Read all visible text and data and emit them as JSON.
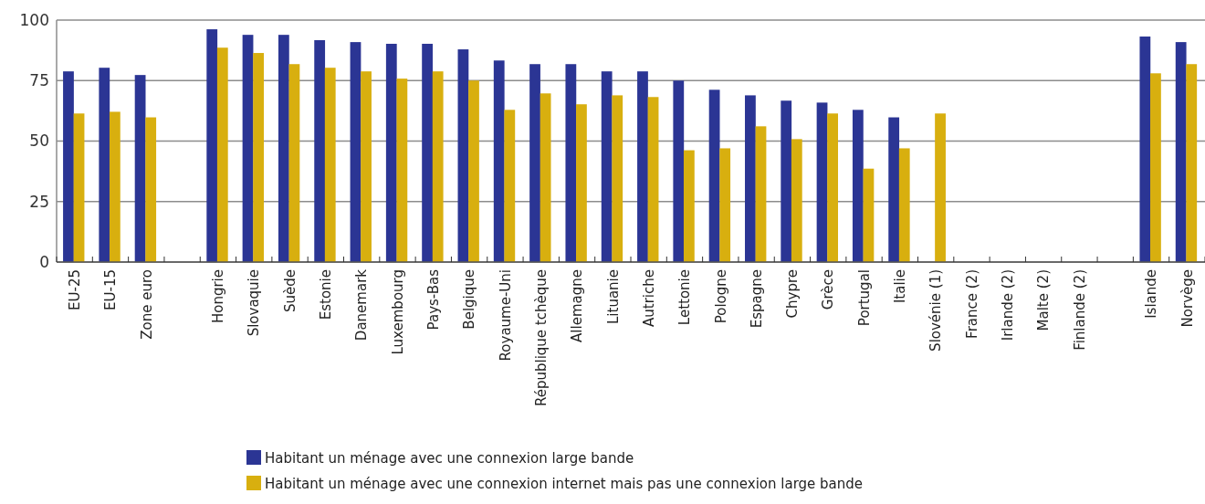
{
  "chart_data": {
    "type": "bar",
    "categories": [
      "EU-25",
      "EU-15",
      "Zone euro",
      null,
      "Hongrie",
      "Slovaquie",
      "Suède",
      "Estonie",
      "Danemark",
      "Luxembourg",
      "Pays-Bas",
      "Belgique",
      "Royaume-Uni",
      "République tchèque",
      "Allemagne",
      "Lituanie",
      "Autriche",
      "Lettonie",
      "Pologne",
      "Espagne",
      "Chypre",
      "Grèce",
      "Portugal",
      "Italie",
      "Slovénie (1)",
      "France (2)",
      "Irlande (2)",
      "Malte (2)",
      "Finlande (2)",
      null,
      "Islande",
      "Norvège"
    ],
    "series": [
      {
        "name": "Habitant un ménage avec une connexion large bande",
        "color": "#2b3594",
        "values": [
          78.8,
          80.3,
          77.3,
          null,
          96.2,
          93.9,
          93.9,
          91.7,
          90.9,
          90.2,
          90.2,
          87.9,
          83.3,
          81.8,
          81.8,
          78.8,
          78.8,
          75.0,
          71.2,
          68.9,
          66.7,
          65.9,
          62.9,
          59.8,
          null,
          null,
          null,
          null,
          null,
          null,
          93.2,
          90.9
        ]
      },
      {
        "name": "Habitant un ménage avec une connexion internet mais pas une connexion large bande",
        "color": "#d8af0f",
        "values": [
          61.4,
          62.1,
          59.8,
          null,
          88.6,
          86.4,
          81.8,
          80.3,
          78.8,
          75.8,
          78.8,
          75.0,
          62.9,
          69.7,
          65.2,
          68.9,
          68.2,
          46.2,
          47.0,
          56.1,
          50.8,
          61.4,
          38.6,
          47.0,
          61.4,
          null,
          null,
          null,
          null,
          null,
          78.0,
          81.8
        ]
      }
    ],
    "ylim": [
      0,
      100
    ],
    "yticks": [
      0,
      25,
      50,
      75,
      100
    ],
    "grid": "y",
    "legend": "bottom"
  }
}
